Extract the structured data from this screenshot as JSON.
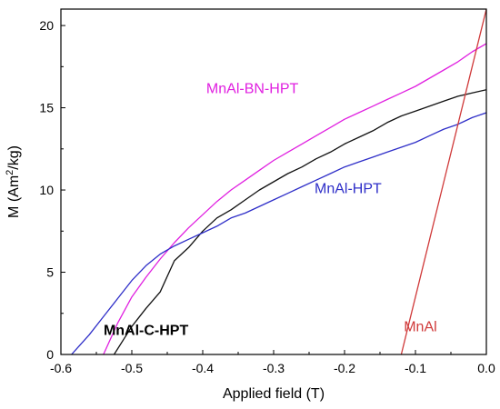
{
  "chart_data": {
    "type": "line",
    "title": "",
    "xlabel": "Applied field (T)",
    "ylabel_main": "M (Am",
    "ylabel_sup": "2",
    "ylabel_tail": "/kg)",
    "xlim": [
      -0.6,
      0.0
    ],
    "ylim": [
      0,
      21
    ],
    "xticks": [
      -0.6,
      -0.5,
      -0.4,
      -0.3,
      -0.2,
      -0.1,
      0.0
    ],
    "xtick_labels": [
      "-0.6",
      "-0.5",
      "-0.4",
      "-0.3",
      "-0.2",
      "-0.1",
      "0.0"
    ],
    "yticks": [
      0,
      5,
      10,
      15,
      20
    ],
    "ytick_labels": [
      "0",
      "5",
      "10",
      "15",
      "20"
    ],
    "series": [
      {
        "name": "MnAl-BN-HPT",
        "color": "#e020e0",
        "label_bold": false,
        "label_at": [
          -0.33,
          15.9
        ],
        "x": [
          -0.54,
          -0.52,
          -0.5,
          -0.48,
          -0.46,
          -0.44,
          -0.42,
          -0.4,
          -0.38,
          -0.36,
          -0.34,
          -0.32,
          -0.3,
          -0.28,
          -0.26,
          -0.24,
          -0.22,
          -0.2,
          -0.18,
          -0.16,
          -0.14,
          -0.12,
          -0.1,
          -0.08,
          -0.06,
          -0.04,
          -0.02,
          0.0
        ],
        "y": [
          0,
          1.9,
          3.5,
          4.7,
          5.8,
          6.8,
          7.7,
          8.5,
          9.3,
          10.0,
          10.6,
          11.2,
          11.8,
          12.3,
          12.8,
          13.3,
          13.8,
          14.3,
          14.7,
          15.1,
          15.5,
          15.9,
          16.3,
          16.8,
          17.3,
          17.8,
          18.4,
          18.9
        ]
      },
      {
        "name": "MnAl-C-HPT",
        "color": "#111111",
        "label_bold": true,
        "label_at": [
          -0.48,
          1.2
        ],
        "x": [
          -0.525,
          -0.5,
          -0.48,
          -0.46,
          -0.44,
          -0.42,
          -0.4,
          -0.38,
          -0.36,
          -0.34,
          -0.32,
          -0.3,
          -0.28,
          -0.26,
          -0.24,
          -0.22,
          -0.2,
          -0.18,
          -0.16,
          -0.14,
          -0.12,
          -0.1,
          -0.08,
          -0.06,
          -0.04,
          -0.02,
          0.0
        ],
        "y": [
          0,
          1.7,
          2.8,
          3.8,
          5.7,
          6.5,
          7.5,
          8.3,
          8.8,
          9.4,
          10.0,
          10.5,
          11.0,
          11.4,
          11.9,
          12.3,
          12.8,
          13.2,
          13.6,
          14.1,
          14.5,
          14.8,
          15.1,
          15.4,
          15.7,
          15.9,
          16.1
        ]
      },
      {
        "name": "MnAl-HPT",
        "color": "#2e2ec8",
        "label_bold": false,
        "label_at": [
          -0.195,
          9.8
        ],
        "x": [
          -0.585,
          -0.56,
          -0.54,
          -0.52,
          -0.5,
          -0.48,
          -0.46,
          -0.44,
          -0.42,
          -0.4,
          -0.38,
          -0.36,
          -0.34,
          -0.32,
          -0.3,
          -0.28,
          -0.26,
          -0.24,
          -0.22,
          -0.2,
          -0.18,
          -0.16,
          -0.14,
          -0.12,
          -0.1,
          -0.08,
          -0.06,
          -0.04,
          -0.02,
          0.0
        ],
        "y": [
          0,
          1.2,
          2.3,
          3.4,
          4.5,
          5.4,
          6.1,
          6.6,
          7.0,
          7.4,
          7.8,
          8.3,
          8.6,
          9.0,
          9.4,
          9.8,
          10.2,
          10.6,
          11.0,
          11.4,
          11.7,
          12.0,
          12.3,
          12.6,
          12.9,
          13.3,
          13.7,
          14.0,
          14.4,
          14.7
        ]
      },
      {
        "name": "MnAl",
        "color": "#d03a3a",
        "label_bold": false,
        "label_at": [
          -0.093,
          1.4
        ],
        "x": [
          -0.12,
          -0.1,
          -0.08,
          -0.06,
          -0.04,
          -0.02,
          0.0
        ],
        "y": [
          0,
          3.5,
          7.0,
          10.5,
          14.0,
          17.5,
          21.0
        ]
      }
    ]
  }
}
